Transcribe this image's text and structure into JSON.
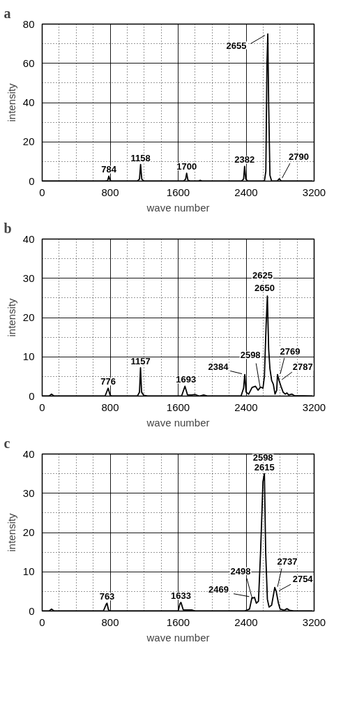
{
  "chart_data": [
    {
      "type": "line",
      "title": "a",
      "xlabel": "wave number",
      "ylabel": "intensity",
      "xlim": [
        0,
        3200
      ],
      "ylim": [
        0,
        80
      ],
      "xticks": [
        0,
        800,
        1600,
        2400,
        3200
      ],
      "yticks": [
        0,
        20,
        40,
        60,
        80
      ],
      "grid": true,
      "marker": "none",
      "line_style": "solid",
      "series": [
        {
          "color": "#000000",
          "x": [
            0,
            740,
            770,
            784,
            800,
            820,
            1120,
            1145,
            1158,
            1172,
            1195,
            1665,
            1688,
            1700,
            1715,
            1740,
            1840,
            1860,
            1880,
            2345,
            2370,
            2382,
            2396,
            2420,
            2615,
            2632,
            2645,
            2655,
            2665,
            2680,
            2700,
            2765,
            2790,
            2815,
            3180
          ],
          "values": [
            0,
            0,
            0.2,
            2.5,
            0.3,
            0,
            0,
            1,
            8.5,
            1,
            0,
            0,
            1,
            4,
            0.5,
            0,
            0,
            0.4,
            0,
            0,
            1,
            7.5,
            1,
            0,
            0,
            5,
            60,
            75,
            40,
            3,
            0,
            0,
            1.2,
            0,
            0
          ]
        }
      ],
      "annotations": [
        {
          "text": "784",
          "x": 784,
          "y": 2.5
        },
        {
          "text": "1158",
          "x": 1158,
          "y": 8.5
        },
        {
          "text": "1700",
          "x": 1700,
          "y": 4
        },
        {
          "text": "2382",
          "x": 2382,
          "y": 7.5
        },
        {
          "text": "2655",
          "x": 2655,
          "y": 75
        },
        {
          "text": "2790",
          "x": 2790,
          "y": 1.2
        }
      ]
    },
    {
      "type": "line",
      "title": "b",
      "xlabel": "wave number",
      "ylabel": "intensity",
      "xlim": [
        0,
        3200
      ],
      "ylim": [
        0,
        40
      ],
      "xticks": [
        0,
        800,
        1600,
        2400,
        3200
      ],
      "yticks": [
        0,
        10,
        20,
        30,
        40
      ],
      "grid": true,
      "marker": "none",
      "line_style": "solid",
      "series": [
        {
          "color": "#000000",
          "x": [
            0,
            80,
            110,
            140,
            740,
            776,
            800,
            820,
            1120,
            1145,
            1157,
            1170,
            1195,
            1240,
            1640,
            1680,
            1710,
            1760,
            1800,
            1850,
            1900,
            1950,
            2340,
            2370,
            2384,
            2400,
            2430,
            2470,
            2510,
            2540,
            2570,
            2598,
            2615,
            2635,
            2650,
            2665,
            2680,
            2700,
            2720,
            2740,
            2760,
            2769,
            2787,
            2810,
            2835,
            2860,
            2880,
            2900,
            2940,
            2970,
            3180
          ],
          "values": [
            0,
            0,
            0.5,
            0,
            0,
            2,
            0.2,
            0,
            0,
            1,
            7.2,
            1,
            0.2,
            0,
            0,
            2.5,
            0.3,
            0.3,
            0.4,
            0,
            0.3,
            0,
            0,
            2,
            5.5,
            1,
            0.5,
            2.2,
            2.5,
            1.5,
            2.3,
            2,
            5,
            18,
            25.5,
            12,
            7,
            4,
            3,
            0.5,
            1.5,
            5.5,
            4,
            2.5,
            1,
            0.5,
            0.8,
            0.3,
            0.5,
            0.1,
            0
          ]
        }
      ],
      "annotations": [
        {
          "text": "776",
          "x": 776,
          "y": 2
        },
        {
          "text": "1157",
          "x": 1157,
          "y": 7.2
        },
        {
          "text": "1693",
          "x": 1693,
          "y": 2.5
        },
        {
          "text": "2384",
          "x": 2384,
          "y": 5.5
        },
        {
          "text": "2598",
          "x": 2598,
          "y": 2
        },
        {
          "text": "2650",
          "x": 2650,
          "y": 25.5
        },
        {
          "text": "2625",
          "x": 2625,
          "y": 25.5
        },
        {
          "text": "2769",
          "x": 2769,
          "y": 5.5
        },
        {
          "text": "2787",
          "x": 2787,
          "y": 4
        }
      ]
    },
    {
      "type": "line",
      "title": "c",
      "xlabel": "wave number",
      "ylabel": "intensity",
      "xlim": [
        0,
        3200
      ],
      "ylim": [
        0,
        40
      ],
      "xticks": [
        0,
        800,
        1600,
        2400,
        3200
      ],
      "yticks": [
        0,
        10,
        20,
        30,
        40
      ],
      "grid": true,
      "marker": "none",
      "line_style": "solid",
      "series": [
        {
          "color": "#000000",
          "x": [
            0,
            80,
            110,
            140,
            720,
            755,
            763,
            780,
            800,
            1600,
            1620,
            1633,
            1660,
            1700,
            1760,
            1800,
            2380,
            2440,
            2469,
            2480,
            2498,
            2520,
            2545,
            2570,
            2598,
            2615,
            2630,
            2650,
            2670,
            2700,
            2737,
            2754,
            2780,
            2800,
            2850,
            2880,
            2910,
            2960,
            3180
          ],
          "values": [
            0,
            0,
            0.5,
            0,
            0,
            1.8,
            2,
            0.3,
            0,
            0,
            1.8,
            2.2,
            0.3,
            0.3,
            0.3,
            0,
            0,
            0.5,
            3.5,
            3.3,
            3.5,
            2,
            2.5,
            15,
            33,
            35,
            15,
            3,
            1,
            1.5,
            6,
            5,
            2,
            0.5,
            0.2,
            0.6,
            0.2,
            0,
            0
          ]
        }
      ],
      "annotations": [
        {
          "text": "763",
          "x": 763,
          "y": 2
        },
        {
          "text": "1633",
          "x": 1633,
          "y": 2.2
        },
        {
          "text": "2469",
          "x": 2469,
          "y": 3.5
        },
        {
          "text": "2498",
          "x": 2498,
          "y": 3.5
        },
        {
          "text": "2615",
          "x": 2615,
          "y": 35
        },
        {
          "text": "2598",
          "x": 2598,
          "y": 35
        },
        {
          "text": "2737",
          "x": 2737,
          "y": 6
        },
        {
          "text": "2754",
          "x": 2754,
          "y": 5
        }
      ]
    }
  ]
}
